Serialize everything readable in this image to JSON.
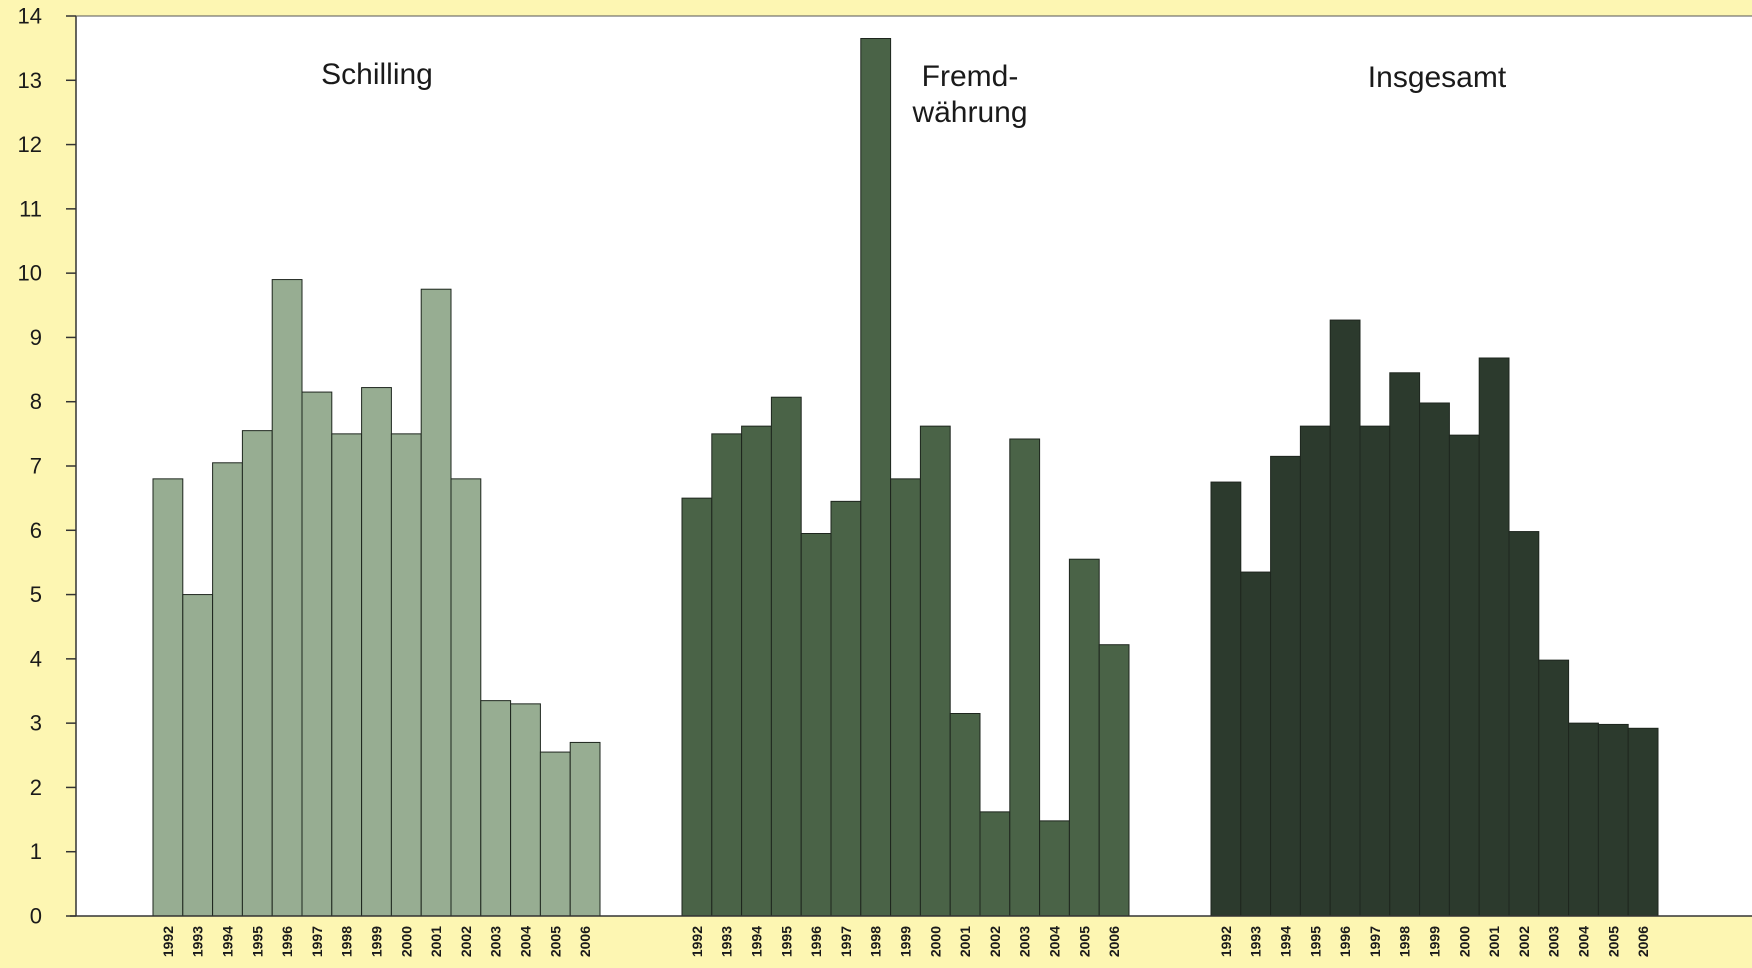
{
  "chart_data": {
    "type": "bar",
    "categories": [
      "1992",
      "1993",
      "1994",
      "1995",
      "1996",
      "1997",
      "1998",
      "1999",
      "2000",
      "2001",
      "2002",
      "2003",
      "2004",
      "2005",
      "2006"
    ],
    "series": [
      {
        "name": "Schilling",
        "label_lines": [
          "Schilling"
        ],
        "color": "#97ad92",
        "values": [
          6.8,
          5.0,
          7.05,
          7.55,
          9.9,
          8.15,
          7.5,
          8.22,
          7.5,
          9.75,
          6.8,
          3.35,
          3.3,
          2.55,
          2.7
        ]
      },
      {
        "name": "Fremd-währung",
        "label_lines": [
          "Fremd-",
          "währung"
        ],
        "color": "#4a6347",
        "values": [
          6.5,
          7.5,
          7.62,
          8.07,
          5.95,
          6.45,
          13.65,
          6.8,
          7.62,
          3.15,
          1.62,
          7.42,
          1.48,
          5.55,
          4.22
        ]
      },
      {
        "name": "Insgesamt",
        "label_lines": [
          "Insgesamt"
        ],
        "color": "#2c3a2d",
        "values": [
          6.75,
          5.35,
          7.15,
          7.62,
          9.27,
          7.62,
          8.45,
          7.98,
          7.48,
          8.68,
          5.98,
          3.98,
          3.0,
          2.98,
          2.92
        ]
      }
    ],
    "title": "",
    "xlabel": "",
    "ylabel": "",
    "ylim": [
      0,
      14
    ],
    "yticks": [
      0,
      1,
      2,
      3,
      4,
      5,
      6,
      7,
      8,
      9,
      10,
      11,
      12,
      13,
      14
    ],
    "grid": false,
    "legend": "none",
    "background_color": "#fdf6b2",
    "plot_background_color": "#ffffff"
  }
}
